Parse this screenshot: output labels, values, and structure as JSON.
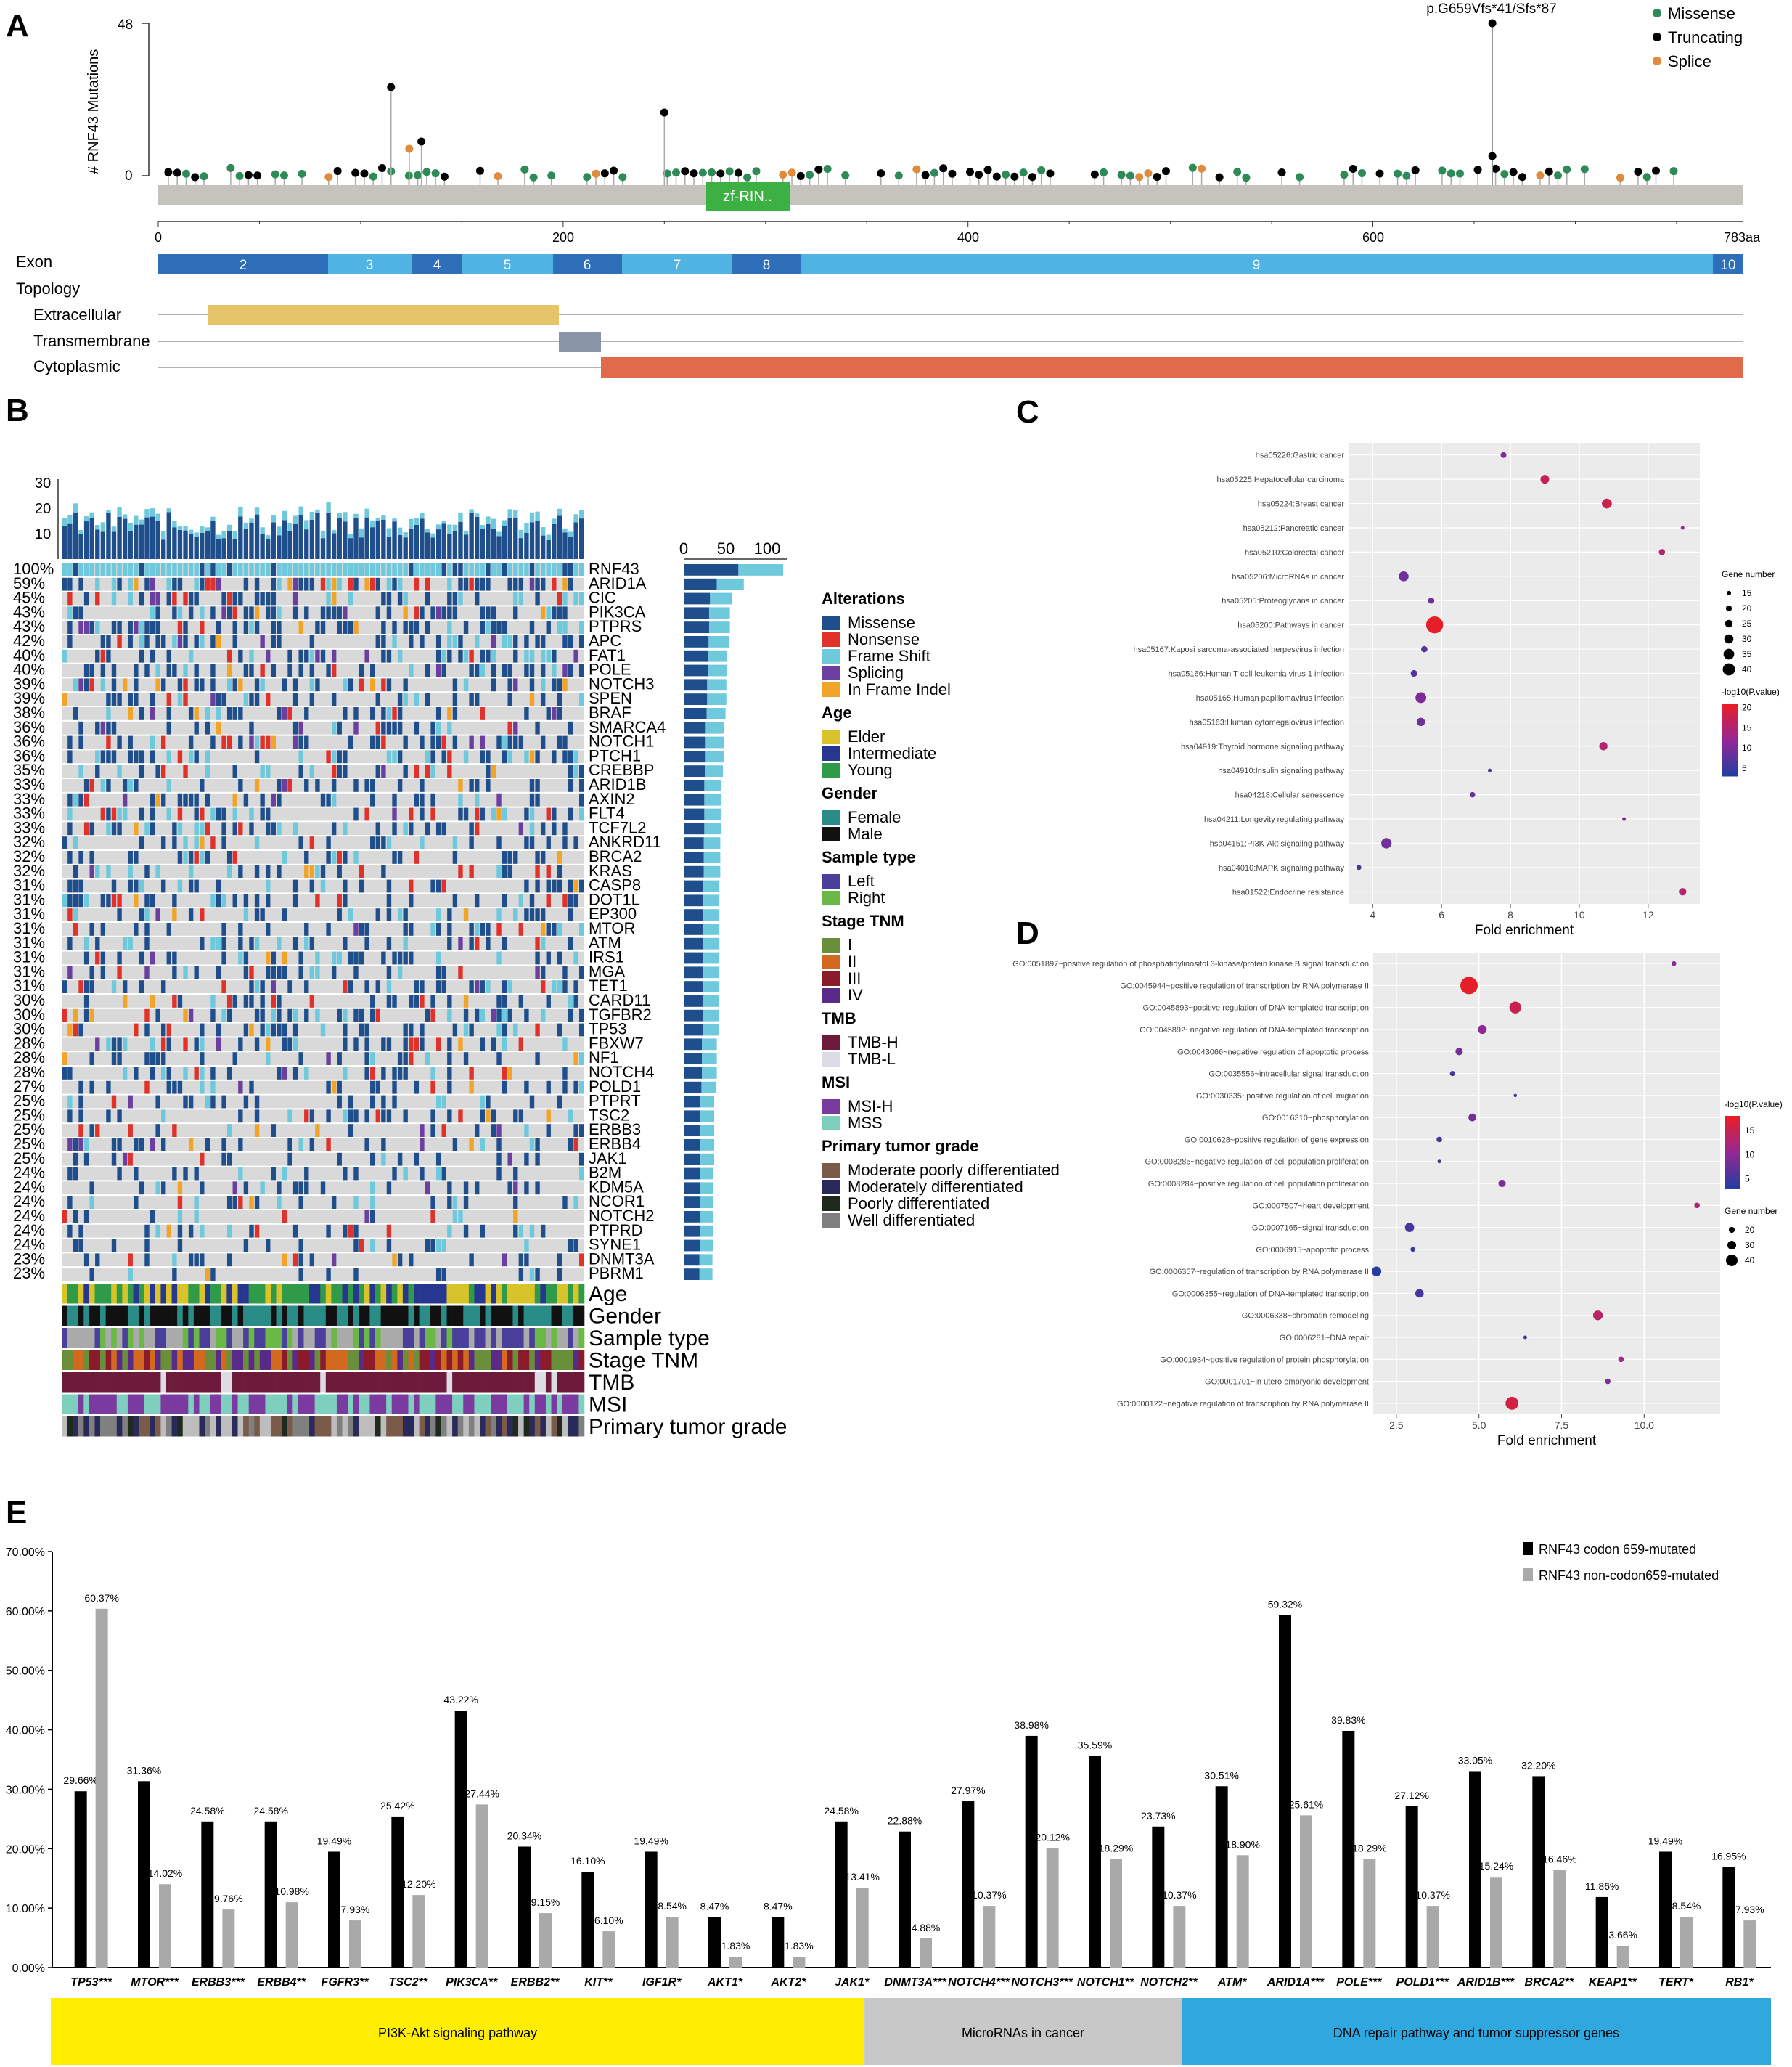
{
  "panels": {
    "A": "A",
    "B": "B",
    "C": "C",
    "D": "D",
    "E": "E"
  },
  "panel_a": {
    "ylabel": "# RNF43 Mutations",
    "ymax_label": "48",
    "ymin_label": "0",
    "domain_label": "zf-RIN..",
    "hotspot_label": "p.G659Vfs*41/Sfs*87",
    "length_label": "783aa",
    "ticks": [
      "0",
      "200",
      "400",
      "600"
    ],
    "legend": [
      {
        "name": "Missense",
        "color": "#2e8b57"
      },
      {
        "name": "Truncating",
        "color": "#000000"
      },
      {
        "name": "Splice",
        "color": "#e08a3c"
      }
    ],
    "track_labels": {
      "exon": "Exon",
      "topology": "Topology",
      "extracellular": "Extracellular",
      "transmembrane": "Transmembrane",
      "cytoplasmic": "Cytoplasmic"
    },
    "exons": [
      "2",
      "3",
      "4",
      "5",
      "6",
      "7",
      "8",
      "9",
      "10"
    ],
    "colors": {
      "extracellular": "#e6c46a",
      "transmembrane": "#8a96a8",
      "cytoplasmic": "#e06a4a",
      "domain": "#3cb043",
      "backbone": "#c4c4bc",
      "exon_dark": "#2f6fba",
      "exon_light": "#4fb3e3"
    }
  },
  "panel_b": {
    "top_ticks": [
      "30",
      "20",
      "10"
    ],
    "right_ticks": [
      "0",
      "50",
      "100"
    ],
    "genes": [
      {
        "g": "RNF43",
        "p": "100%"
      },
      {
        "g": "ARID1A",
        "p": "59%"
      },
      {
        "g": "CIC",
        "p": "45%"
      },
      {
        "g": "PIK3CA",
        "p": "43%"
      },
      {
        "g": "PTPRS",
        "p": "43%"
      },
      {
        "g": "APC",
        "p": "42%"
      },
      {
        "g": "FAT1",
        "p": "40%"
      },
      {
        "g": "POLE",
        "p": "40%"
      },
      {
        "g": "NOTCH3",
        "p": "39%"
      },
      {
        "g": "SPEN",
        "p": "39%"
      },
      {
        "g": "BRAF",
        "p": "38%"
      },
      {
        "g": "SMARCA4",
        "p": "36%"
      },
      {
        "g": "NOTCH1",
        "p": "36%"
      },
      {
        "g": "PTCH1",
        "p": "36%"
      },
      {
        "g": "CREBBP",
        "p": "35%"
      },
      {
        "g": "ARID1B",
        "p": "33%"
      },
      {
        "g": "AXIN2",
        "p": "33%"
      },
      {
        "g": "FLT4",
        "p": "33%"
      },
      {
        "g": "TCF7L2",
        "p": "33%"
      },
      {
        "g": "ANKRD11",
        "p": "32%"
      },
      {
        "g": "BRCA2",
        "p": "32%"
      },
      {
        "g": "KRAS",
        "p": "32%"
      },
      {
        "g": "CASP8",
        "p": "31%"
      },
      {
        "g": "DOT1L",
        "p": "31%"
      },
      {
        "g": "EP300",
        "p": "31%"
      },
      {
        "g": "MTOR",
        "p": "31%"
      },
      {
        "g": "ATM",
        "p": "31%"
      },
      {
        "g": "IRS1",
        "p": "31%"
      },
      {
        "g": "MGA",
        "p": "31%"
      },
      {
        "g": "TET1",
        "p": "31%"
      },
      {
        "g": "CARD11",
        "p": "30%"
      },
      {
        "g": "TGFBR2",
        "p": "30%"
      },
      {
        "g": "TP53",
        "p": "30%"
      },
      {
        "g": "FBXW7",
        "p": "28%"
      },
      {
        "g": "NF1",
        "p": "28%"
      },
      {
        "g": "NOTCH4",
        "p": "28%"
      },
      {
        "g": "POLD1",
        "p": "27%"
      },
      {
        "g": "PTPRT",
        "p": "25%"
      },
      {
        "g": "TSC2",
        "p": "25%"
      },
      {
        "g": "ERBB3",
        "p": "25%"
      },
      {
        "g": "ERBB4",
        "p": "25%"
      },
      {
        "g": "JAK1",
        "p": "25%"
      },
      {
        "g": "B2M",
        "p": "24%"
      },
      {
        "g": "KDM5A",
        "p": "24%"
      },
      {
        "g": "NCOR1",
        "p": "24%"
      },
      {
        "g": "NOTCH2",
        "p": "24%"
      },
      {
        "g": "PTPRD",
        "p": "24%"
      },
      {
        "g": "SYNE1",
        "p": "24%"
      },
      {
        "g": "DNMT3A",
        "p": "23%"
      },
      {
        "g": "PBRM1",
        "p": "23%"
      }
    ],
    "clinical_tracks": [
      "Age",
      "Gender",
      "Sample type",
      "Stage TNM",
      "TMB",
      "MSI",
      "Primary tumor grade"
    ],
    "legend": [
      {
        "title": "Alterations",
        "items": [
          {
            "l": "Missense",
            "c": "#1f4e8c"
          },
          {
            "l": "Nonsense",
            "c": "#e0312b"
          },
          {
            "l": "Frame Shift",
            "c": "#6ec9dc"
          },
          {
            "l": "Splicing",
            "c": "#6b3fa0"
          },
          {
            "l": "In Frame Indel",
            "c": "#f2a428"
          }
        ]
      },
      {
        "title": "Age",
        "items": [
          {
            "l": "Elder",
            "c": "#d8c42a"
          },
          {
            "l": "Intermediate",
            "c": "#27378f"
          },
          {
            "l": "Young",
            "c": "#2f9a48"
          }
        ]
      },
      {
        "title": "Gender",
        "items": [
          {
            "l": "Female",
            "c": "#2a8c86"
          },
          {
            "l": "Male",
            "c": "#111111"
          }
        ]
      },
      {
        "title": "Sample type",
        "items": [
          {
            "l": "Left",
            "c": "#4a3f9a"
          },
          {
            "l": "Right",
            "c": "#6ab845"
          }
        ]
      },
      {
        "title": "Stage TNM",
        "items": [
          {
            "l": "I",
            "c": "#6a8f3a"
          },
          {
            "l": "II",
            "c": "#d2691e"
          },
          {
            "l": "III",
            "c": "#8b1a2a"
          },
          {
            "l": "IV",
            "c": "#5a2a8a"
          }
        ]
      },
      {
        "title": "TMB",
        "items": [
          {
            "l": "TMB-H",
            "c": "#6e1a3a"
          },
          {
            "l": "TMB-L",
            "c": "#dcdce6"
          }
        ]
      },
      {
        "title": "MSI",
        "items": [
          {
            "l": "MSI-H",
            "c": "#7a3aa0"
          },
          {
            "l": "MSS",
            "c": "#7fcfbf"
          }
        ]
      },
      {
        "title": "Primary tumor grade",
        "items": [
          {
            "l": "Moderate poorly differentiated",
            "c": "#7a5a48"
          },
          {
            "l": "Moderately differentiated",
            "c": "#2a2a5a"
          },
          {
            "l": "Poorly differentiated",
            "c": "#1f2a1f"
          },
          {
            "l": "Well differentiated",
            "c": "#808080"
          }
        ]
      }
    ]
  },
  "chart_data": [
    {
      "type": "scatter",
      "title": "",
      "xlabel": "Fold enrichment",
      "xlim": [
        3.3,
        13.5
      ],
      "xticks": [
        "4",
        "6",
        "8",
        "10",
        "12"
      ],
      "size_legend_title": "Gene number",
      "size_legend": [
        "15",
        "20",
        "25",
        "30",
        "35",
        "40"
      ],
      "color_legend_title": "-log10(P.value)",
      "color_ticks": [
        "20",
        "15",
        "10",
        "5"
      ],
      "points": [
        {
          "term": "hsa05226:Gastric cancer",
          "fe": 7.8,
          "genes": 17,
          "p": 10
        },
        {
          "term": "hsa05225:Hepatocellular carcinoma",
          "fe": 9.0,
          "genes": 24,
          "p": 17
        },
        {
          "term": "hsa05224:Breast cancer",
          "fe": 10.8,
          "genes": 27,
          "p": 18
        },
        {
          "term": "hsa05212:Pancreatic cancer",
          "fe": 13.0,
          "genes": 12,
          "p": 13
        },
        {
          "term": "hsa05210:Colorectal cancer",
          "fe": 12.4,
          "genes": 18,
          "p": 15
        },
        {
          "term": "hsa05206:MicroRNAs in cancer",
          "fe": 4.9,
          "genes": 27,
          "p": 9
        },
        {
          "term": "hsa05205:Proteoglycans in cancer",
          "fe": 5.7,
          "genes": 18,
          "p": 9
        },
        {
          "term": "hsa05200:Pathways in cancer",
          "fe": 5.8,
          "genes": 44,
          "p": 21
        },
        {
          "term": "hsa05167:Kaposi sarcoma-associated herpesvirus infection",
          "fe": 5.5,
          "genes": 18,
          "p": 7
        },
        {
          "term": "hsa05166:Human T-cell leukemia virus 1 infection",
          "fe": 5.2,
          "genes": 19,
          "p": 7
        },
        {
          "term": "hsa05165:Human papillomavirus infection",
          "fe": 5.4,
          "genes": 29,
          "p": 10
        },
        {
          "term": "hsa05163:Human cytomegalovirus infection",
          "fe": 5.4,
          "genes": 23,
          "p": 9
        },
        {
          "term": "hsa04919:Thyroid hormone signaling pathway",
          "fe": 10.7,
          "genes": 23,
          "p": 15
        },
        {
          "term": "hsa04910:Insulin signaling pathway",
          "fe": 7.4,
          "genes": 12,
          "p": 6
        },
        {
          "term": "hsa04218:Cellular senescence",
          "fe": 6.9,
          "genes": 16,
          "p": 8
        },
        {
          "term": "hsa04211:Longevity regulating pathway",
          "fe": 11.3,
          "genes": 12,
          "p": 10
        },
        {
          "term": "hsa04151:PI3K-Akt signaling pathway",
          "fe": 4.4,
          "genes": 28,
          "p": 9
        },
        {
          "term": "hsa04010:MAPK signaling pathway",
          "fe": 3.6,
          "genes": 15,
          "p": 5
        },
        {
          "term": "hsa01522:Endocrine resistance",
          "fe": 13.0,
          "genes": 21,
          "p": 15
        }
      ]
    },
    {
      "type": "scatter",
      "title": "",
      "xlabel": "Fold enrichment",
      "xlim": [
        1.8,
        12.3
      ],
      "xticks": [
        "2.5",
        "5.0",
        "7.5",
        "10.0"
      ],
      "size_legend_title": "Gene number",
      "size_legend": [
        "20",
        "30",
        "40"
      ],
      "color_legend_title": "-log10(P.value)",
      "color_ticks": [
        "15",
        "10",
        "5"
      ],
      "points": [
        {
          "term": "GO:0051897~positive regulation of phosphatidylinositol 3-kinase/protein kinase B signal transduction",
          "fe": 10.9,
          "genes": 14,
          "p": 10
        },
        {
          "term": "GO:0045944~positive regulation of transcription by RNA polymerase II",
          "fe": 4.7,
          "genes": 48,
          "p": 18
        },
        {
          "term": "GO:0045893~positive regulation of DNA-templated transcription",
          "fe": 6.1,
          "genes": 33,
          "p": 15
        },
        {
          "term": "GO:0045892~negative regulation of DNA-templated transcription",
          "fe": 5.1,
          "genes": 25,
          "p": 10
        },
        {
          "term": "GO:0043066~negative regulation of apoptotic process",
          "fe": 4.4,
          "genes": 21,
          "p": 8
        },
        {
          "term": "GO:0035556~intracellular signal transduction",
          "fe": 4.2,
          "genes": 15,
          "p": 5
        },
        {
          "term": "GO:0030335~positive regulation of cell migration",
          "fe": 6.1,
          "genes": 10,
          "p": 5
        },
        {
          "term": "GO:0016310~phosphorylation",
          "fe": 4.8,
          "genes": 22,
          "p": 8
        },
        {
          "term": "GO:0010628~positive regulation of gene expression",
          "fe": 3.8,
          "genes": 16,
          "p": 5
        },
        {
          "term": "GO:0008285~negative regulation of cell population proliferation",
          "fe": 3.8,
          "genes": 11,
          "p": 4
        },
        {
          "term": "GO:0008284~positive regulation of cell population proliferation",
          "fe": 5.7,
          "genes": 21,
          "p": 9
        },
        {
          "term": "GO:0007507~heart development",
          "fe": 11.6,
          "genes": 16,
          "p": 13
        },
        {
          "term": "GO:0007165~signal transduction",
          "fe": 2.9,
          "genes": 26,
          "p": 5
        },
        {
          "term": "GO:0006915~apoptotic process",
          "fe": 3.0,
          "genes": 14,
          "p": 4
        },
        {
          "term": "GO:0006357~regulation of transcription by RNA polymerase II",
          "fe": 1.9,
          "genes": 27,
          "p": 3
        },
        {
          "term": "GO:0006355~regulation of DNA-templated transcription",
          "fe": 3.2,
          "genes": 24,
          "p": 5
        },
        {
          "term": "GO:0006338~chromatin remodeling",
          "fe": 8.6,
          "genes": 27,
          "p": 14
        },
        {
          "term": "GO:0006281~DNA repair",
          "fe": 6.4,
          "genes": 11,
          "p": 4
        },
        {
          "term": "GO:0001934~positive regulation of protein phosphorylation",
          "fe": 9.3,
          "genes": 16,
          "p": 11
        },
        {
          "term": "GO:0001701~in utero embryonic development",
          "fe": 8.9,
          "genes": 16,
          "p": 9
        },
        {
          "term": "GO:0000122~negative regulation of transcription by RNA polymerase II",
          "fe": 6.0,
          "genes": 36,
          "p": 16
        }
      ]
    },
    {
      "type": "bar",
      "title": "",
      "xlabel": "",
      "ylabel": "",
      "ylim": [
        0,
        70
      ],
      "yticks": [
        "0.00%",
        "10.00%",
        "20.00%",
        "30.00%",
        "40.00%",
        "50.00%",
        "60.00%",
        "70.00%"
      ],
      "categories": [
        "TP53***",
        "MTOR***",
        "ERBB3***",
        "ERBB4**",
        "FGFR3**",
        "TSC2**",
        "PIK3CA**",
        "ERBB2**",
        "KIT**",
        "IGF1R*",
        "AKT1*",
        "AKT2*",
        "JAK1*",
        "DNMT3A***",
        "NOTCH4***",
        "NOTCH3***",
        "NOTCH1**",
        "NOTCH2**",
        "ATM*",
        "ARID1A***",
        "POLE***",
        "POLD1***",
        "ARID1B***",
        "BRCA2**",
        "KEAP1**",
        "TERT*",
        "RB1*"
      ],
      "series": [
        {
          "name": "RNF43 codon 659-mutated",
          "color": "#000000",
          "values": [
            29.66,
            31.36,
            24.58,
            24.58,
            19.49,
            25.42,
            43.22,
            20.34,
            16.1,
            19.49,
            8.47,
            8.47,
            24.58,
            22.88,
            27.97,
            38.98,
            35.59,
            23.73,
            30.51,
            59.32,
            39.83,
            27.12,
            33.05,
            32.2,
            11.86,
            19.49,
            16.95
          ]
        },
        {
          "name": "RNF43 non-codon659-mutated",
          "color": "#a9a9a9",
          "values": [
            60.37,
            14.02,
            9.76,
            10.98,
            7.93,
            12.2,
            27.44,
            9.15,
            6.1,
            8.54,
            1.83,
            1.83,
            13.41,
            4.88,
            10.37,
            20.12,
            18.29,
            10.37,
            18.9,
            25.61,
            18.29,
            10.37,
            15.24,
            16.46,
            3.66,
            8.54,
            7.93
          ]
        }
      ],
      "groups": [
        {
          "label": "PI3K-Akt signaling pathway",
          "from": 0,
          "to": 12,
          "color": "#ffee00"
        },
        {
          "label": "MicroRNAs in cancer",
          "from": 13,
          "to": 17,
          "color": "#c8c8c8"
        },
        {
          "label": "DNA repair pathway and tumor suppressor genes",
          "from": 18,
          "to": 26,
          "color": "#2fa8e0"
        }
      ]
    }
  ]
}
